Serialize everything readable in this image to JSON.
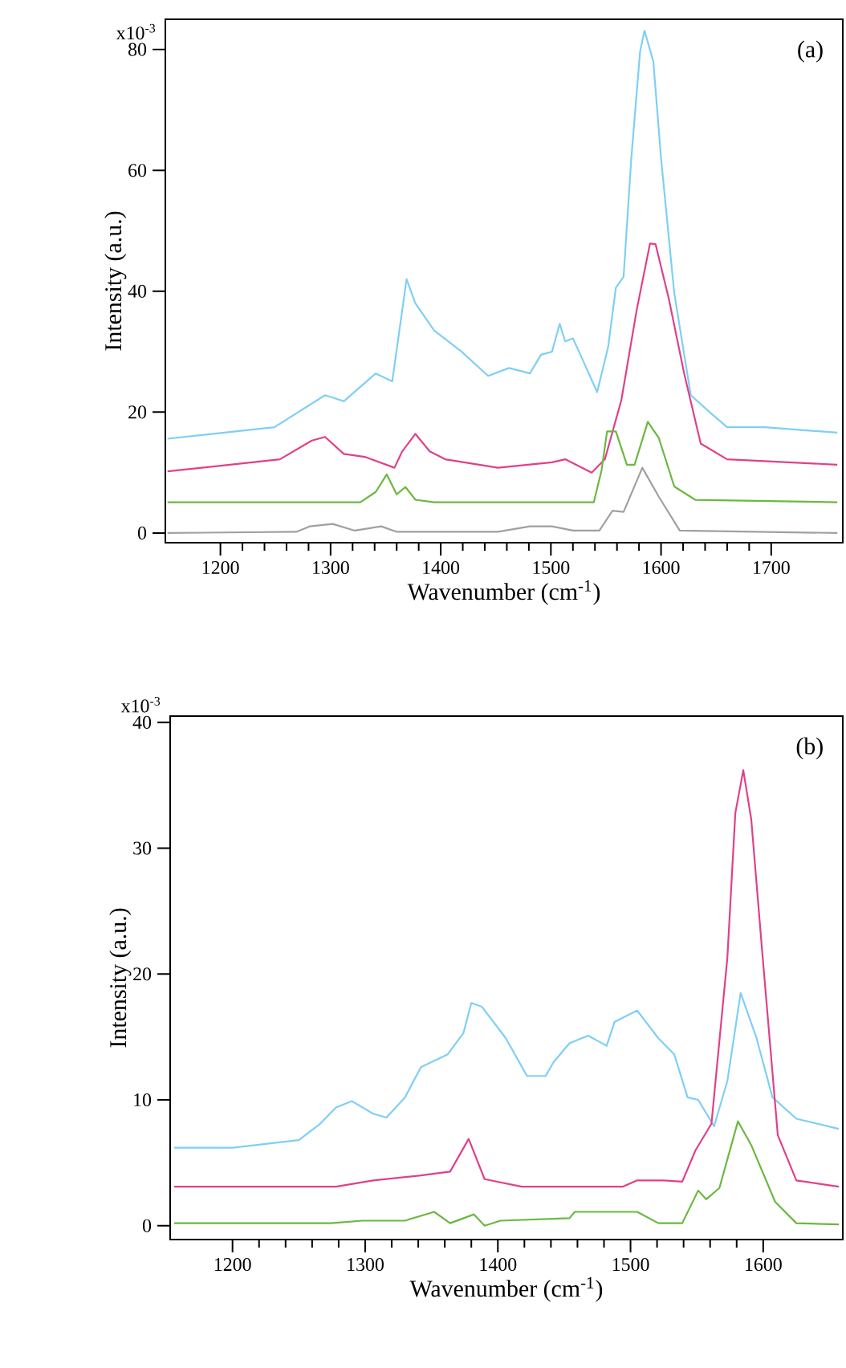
{
  "chart_data": [
    {
      "type": "line",
      "xlabel": "Wavenumber (cm$^{-1}$)",
      "ylabel": "Intensity (a.u.)",
      "annotations": [
        "(a)",
        "x10$^{-3}$"
      ],
      "marker": "none",
      "xlim": [
        1150,
        1765
      ],
      "ylim": [
        -1.6,
        85
      ],
      "xticks": [
        1200,
        1300,
        1400,
        1500,
        1600,
        1700
      ],
      "yticks": [
        0,
        20,
        40,
        60,
        80
      ],
      "series": [
        {
          "color": "#7fcff5",
          "x": [
            1152,
            1249,
            1295,
            1312,
            1341,
            1356,
            1369,
            1377,
            1394,
            1419,
            1443,
            1462,
            1481,
            1491,
            1501,
            1508,
            1513,
            1520,
            1530,
            1542,
            1552,
            1559,
            1566,
            1573,
            1581,
            1585,
            1593,
            1600,
            1612,
            1627,
            1646,
            1660,
            1694,
            1760
          ],
          "values": [
            15.6,
            17.5,
            22.8,
            21.8,
            26.4,
            25.1,
            42.0,
            38,
            33.5,
            30,
            26,
            27.3,
            26.4,
            29.5,
            30,
            34.6,
            31.7,
            32.2,
            28.2,
            23.3,
            30.8,
            40.6,
            42.4,
            62,
            79.7,
            83.1,
            78,
            62,
            39.7,
            22.8,
            19.7,
            17.5,
            17.5,
            16.6
          ]
        },
        {
          "color": "#e0408a",
          "x": [
            1152,
            1254,
            1283,
            1295,
            1312,
            1331,
            1358,
            1365,
            1377,
            1390,
            1404,
            1452,
            1501,
            1513,
            1537,
            1549,
            1564,
            1578,
            1590,
            1595,
            1607,
            1621,
            1636,
            1660,
            1760
          ],
          "values": [
            10.2,
            12.2,
            15.3,
            15.9,
            13.1,
            12.6,
            10.8,
            13.5,
            16.4,
            13.5,
            12.2,
            10.8,
            11.7,
            12.2,
            10,
            12.2,
            22,
            37,
            47.9,
            47.8,
            38.8,
            26.4,
            14.8,
            12.2,
            11.3
          ]
        },
        {
          "color": "#6ab840",
          "x": [
            1152,
            1327,
            1341,
            1351,
            1360,
            1368,
            1377,
            1394,
            1539,
            1546,
            1551,
            1559,
            1569,
            1576,
            1588,
            1598,
            1612,
            1631,
            1760
          ],
          "values": [
            5.1,
            5.1,
            6.8,
            9.7,
            6.4,
            7.6,
            5.5,
            5.1,
            5.1,
            10.4,
            16.8,
            16.8,
            11.3,
            11.3,
            18.4,
            15.7,
            7.7,
            5.5,
            5.1
          ]
        },
        {
          "color": "#a0a0a0",
          "x": [
            1152,
            1269,
            1281,
            1302,
            1322,
            1346,
            1360,
            1452,
            1481,
            1501,
            1520,
            1544,
            1556,
            1566,
            1583,
            1598,
            1617,
            1760
          ],
          "values": [
            0,
            0.2,
            1.1,
            1.5,
            0.4,
            1.1,
            0.2,
            0.2,
            1.1,
            1.1,
            0.4,
            0.4,
            3.7,
            3.5,
            10.8,
            6,
            0.4,
            0
          ]
        }
      ]
    },
    {
      "type": "line",
      "xlabel": "Wavenumber (cm$^{-1}$)",
      "ylabel": "Intensity (a.u.)",
      "annotations": [
        "(b)",
        "x10$^{-3}$"
      ],
      "marker": "none",
      "xlim": [
        1153,
        1660
      ],
      "ylim": [
        -1.1,
        40.5
      ],
      "xticks": [
        1200,
        1300,
        1400,
        1500,
        1600
      ],
      "yticks": [
        0,
        10,
        20,
        30,
        40
      ],
      "series": [
        {
          "color": "#7fcff5",
          "x": [
            1156,
            1200,
            1250,
            1266,
            1278,
            1290,
            1306,
            1316,
            1330,
            1342,
            1362,
            1374,
            1380,
            1388,
            1406,
            1422,
            1436,
            1442,
            1454,
            1468,
            1482,
            1488,
            1505,
            1521,
            1533,
            1543,
            1551,
            1563,
            1573,
            1583,
            1595,
            1607,
            1625,
            1657
          ],
          "values": [
            6.2,
            6.2,
            6.8,
            8.1,
            9.4,
            9.9,
            8.9,
            8.6,
            10.2,
            12.6,
            13.6,
            15.3,
            17.7,
            17.4,
            14.9,
            11.9,
            11.9,
            13,
            14.5,
            15.1,
            14.3,
            16.2,
            17.1,
            14.9,
            13.6,
            10.2,
            10,
            7.9,
            11.5,
            18.5,
            14.9,
            10.2,
            8.5,
            7.7
          ]
        },
        {
          "color": "#e0408a",
          "x": [
            1156,
            1278,
            1306,
            1342,
            1364,
            1378,
            1390,
            1418,
            1494,
            1505,
            1525,
            1539,
            1549,
            1561,
            1573,
            1579,
            1585,
            1591,
            1599,
            1611,
            1625,
            1657
          ],
          "values": [
            3.1,
            3.1,
            3.6,
            4,
            4.3,
            6.9,
            3.7,
            3.1,
            3.1,
            3.6,
            3.6,
            3.5,
            6,
            8.1,
            21.3,
            32.8,
            36.2,
            32.3,
            22.1,
            7.2,
            3.6,
            3.1
          ]
        },
        {
          "color": "#6ab840",
          "x": [
            1156,
            1274,
            1298,
            1330,
            1352,
            1364,
            1382,
            1390,
            1402,
            1454,
            1458,
            1505,
            1521,
            1539,
            1551,
            1557,
            1567,
            1581,
            1591,
            1609,
            1625,
            1657
          ],
          "values": [
            0.2,
            0.2,
            0.4,
            0.4,
            1.1,
            0.2,
            0.9,
            0,
            0.4,
            0.6,
            1.1,
            1.1,
            0.2,
            0.2,
            2.8,
            2.1,
            3,
            8.3,
            6.4,
            1.9,
            0.2,
            0.1
          ]
        }
      ]
    }
  ]
}
